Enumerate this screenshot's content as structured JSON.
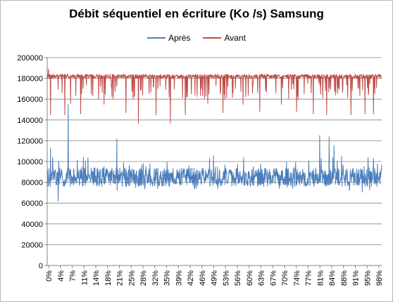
{
  "chart_data": {
    "type": "line",
    "title": "Débit séquentiel en écriture (Ko /s) Samsung",
    "xlabel": "",
    "ylabel": "",
    "ylim": [
      0,
      200000
    ],
    "y_ticks": [
      "0",
      "20000",
      "40000",
      "60000",
      "80000",
      "100000",
      "120000",
      "140000",
      "160000",
      "180000",
      "200000"
    ],
    "x_ticks": [
      "0%",
      "4%",
      "7%",
      "11%",
      "14%",
      "18%",
      "21%",
      "25%",
      "28%",
      "32%",
      "35%",
      "39%",
      "42%",
      "46%",
      "49%",
      "53%",
      "56%",
      "60%",
      "63%",
      "67%",
      "70%",
      "74%",
      "77%",
      "81%",
      "84%",
      "88%",
      "91%",
      "95%",
      "98%"
    ],
    "x_range": [
      0,
      100
    ],
    "grid": "horizontal",
    "legend_position": "top",
    "series": [
      {
        "name": "Après",
        "color": "#4a7ebb",
        "approx_baseline": 85000,
        "spikes": [
          {
            "x": 0.3,
            "y": 76000
          },
          {
            "x": 1.0,
            "y": 113000
          },
          {
            "x": 1.6,
            "y": 104000
          },
          {
            "x": 3.3,
            "y": 62000
          },
          {
            "x": 6.3,
            "y": 155000
          },
          {
            "x": 20.8,
            "y": 122000
          },
          {
            "x": 81.5,
            "y": 125000
          },
          {
            "x": 84.3,
            "y": 124000
          },
          {
            "x": 85.7,
            "y": 115000
          },
          {
            "x": 88.0,
            "y": 105000
          },
          {
            "x": 97.5,
            "y": 103000
          }
        ]
      },
      {
        "name": "Avant",
        "color": "#be4b48",
        "approx_baseline": 182000,
        "spikes": [
          {
            "x": 0.4,
            "y": 189000
          },
          {
            "x": 1.0,
            "y": 145000
          },
          {
            "x": 5.3,
            "y": 145000
          },
          {
            "x": 7.0,
            "y": 156000
          },
          {
            "x": 10.0,
            "y": 146000
          },
          {
            "x": 17.0,
            "y": 155000
          },
          {
            "x": 23.5,
            "y": 147000
          },
          {
            "x": 27.3,
            "y": 137000
          },
          {
            "x": 32.5,
            "y": 145000
          },
          {
            "x": 36.8,
            "y": 137000
          },
          {
            "x": 41.3,
            "y": 145000
          },
          {
            "x": 48.0,
            "y": 156000
          },
          {
            "x": 52.5,
            "y": 147000
          },
          {
            "x": 58.5,
            "y": 155000
          },
          {
            "x": 63.5,
            "y": 148000
          },
          {
            "x": 70.0,
            "y": 155000
          },
          {
            "x": 74.5,
            "y": 148000
          },
          {
            "x": 79.5,
            "y": 146000
          },
          {
            "x": 83.5,
            "y": 145000
          },
          {
            "x": 90.8,
            "y": 145000
          },
          {
            "x": 95.0,
            "y": 146000
          },
          {
            "x": 97.5,
            "y": 146000
          }
        ]
      }
    ]
  }
}
